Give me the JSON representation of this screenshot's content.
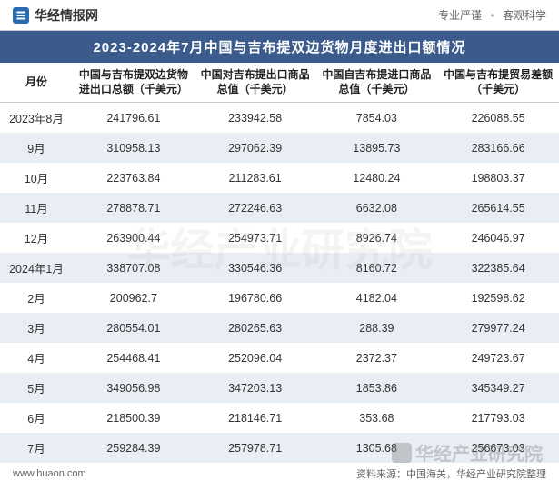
{
  "header": {
    "site_name": "华经情报网",
    "tagline_left": "专业严谨",
    "tagline_right": "客观科学"
  },
  "title": "2023-2024年7月中国与吉布提双边货物月度进出口额情况",
  "table": {
    "columns": [
      "月份",
      "中国与吉布提双边货物进出口总额（千美元）",
      "中国对吉布提出口商品总值（千美元）",
      "中国自吉布提进口商品总值（千美元）",
      "中国与吉布提贸易差额（千美元）"
    ],
    "rows": [
      [
        "2023年8月",
        "241796.61",
        "233942.58",
        "7854.03",
        "226088.55"
      ],
      [
        "9月",
        "310958.13",
        "297062.39",
        "13895.73",
        "283166.66"
      ],
      [
        "10月",
        "223763.84",
        "211283.61",
        "12480.24",
        "198803.37"
      ],
      [
        "11月",
        "278878.71",
        "272246.63",
        "6632.08",
        "265614.55"
      ],
      [
        "12月",
        "263900.44",
        "254973.71",
        "8926.74",
        "246046.97"
      ],
      [
        "2024年1月",
        "338707.08",
        "330546.36",
        "8160.72",
        "322385.64"
      ],
      [
        "2月",
        "200962.7",
        "196780.66",
        "4182.04",
        "192598.62"
      ],
      [
        "3月",
        "280554.01",
        "280265.63",
        "288.39",
        "279977.24"
      ],
      [
        "4月",
        "254468.41",
        "252096.04",
        "2372.37",
        "249723.67"
      ],
      [
        "5月",
        "349056.98",
        "347203.13",
        "1853.86",
        "345349.27"
      ],
      [
        "6月",
        "218500.39",
        "218146.71",
        "353.68",
        "217793.03"
      ],
      [
        "7月",
        "259284.39",
        "257978.71",
        "1305.68",
        "256673.03"
      ]
    ],
    "stripe_color": "#e9edf4",
    "header_bg": "#ffffff",
    "title_bg": "#3a5b8c",
    "title_color": "#ffffff",
    "text_color": "#333333",
    "font_size_body": 12.5,
    "font_size_header": 12
  },
  "footer": {
    "url": "www.huaon.com",
    "source": "资料来源：中国海关，华经产业研究院整理"
  },
  "watermark": "华经产业研究院",
  "bg_watermark": "华经产业研究院"
}
